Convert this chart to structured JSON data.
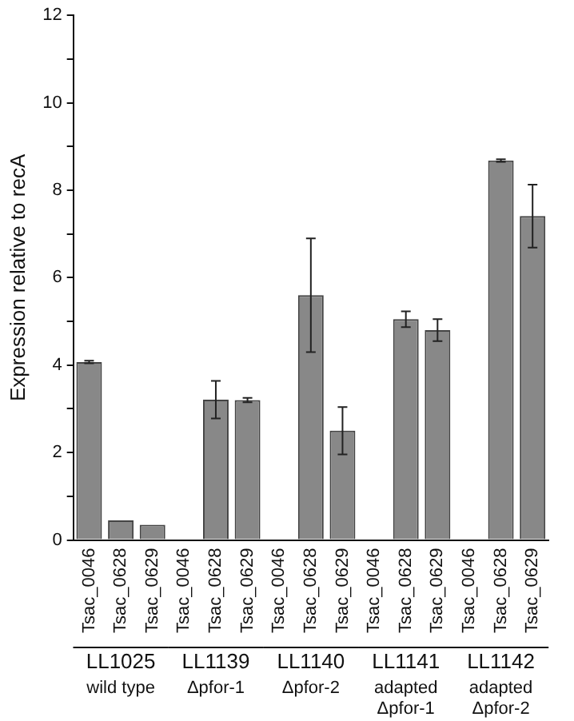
{
  "chart_data": {
    "type": "bar",
    "ylabel": "Expression relative to recA",
    "categories": [
      "Tsac_0046",
      "Tsac_0628",
      "Tsac_0629",
      "Tsac_0046",
      "Tsac_0628",
      "Tsac_0629",
      "Tsac_0046",
      "Tsac_0628",
      "Tsac_0629",
      "Tsac_0046",
      "Tsac_0628",
      "Tsac_0629",
      "Tsac_0046",
      "Tsac_0628",
      "Tsac_0629"
    ],
    "values": [
      4.07,
      0.45,
      0.35,
      0,
      3.21,
      3.2,
      0,
      5.6,
      2.5,
      0,
      5.05,
      4.8,
      0,
      8.68,
      7.41
    ],
    "errors": [
      0.03,
      null,
      null,
      null,
      0.43,
      0.05,
      null,
      1.3,
      0.54,
      null,
      0.18,
      0.25,
      null,
      0.03,
      0.72
    ],
    "color": "#888888",
    "ylim": [
      0,
      12
    ],
    "yticks": [
      0,
      {
        "value": 1,
        "label": null
      },
      2,
      {
        "value": 3,
        "label": null
      },
      4,
      {
        "value": 5,
        "label": null
      },
      6,
      {
        "value": 7,
        "label": null
      },
      8,
      {
        "value": 9,
        "label": null
      },
      10,
      {
        "value": 11,
        "label": null
      },
      12
    ],
    "grid": false,
    "legend": false,
    "annotations": [
      "LL1025",
      "LL1139",
      "LL1140",
      "LL1141",
      "LL1142",
      "wild type",
      "Δpfor-1",
      "Δpfor-2",
      "adapted Δpfor-1",
      "adapted Δpfor-2"
    ]
  }
}
